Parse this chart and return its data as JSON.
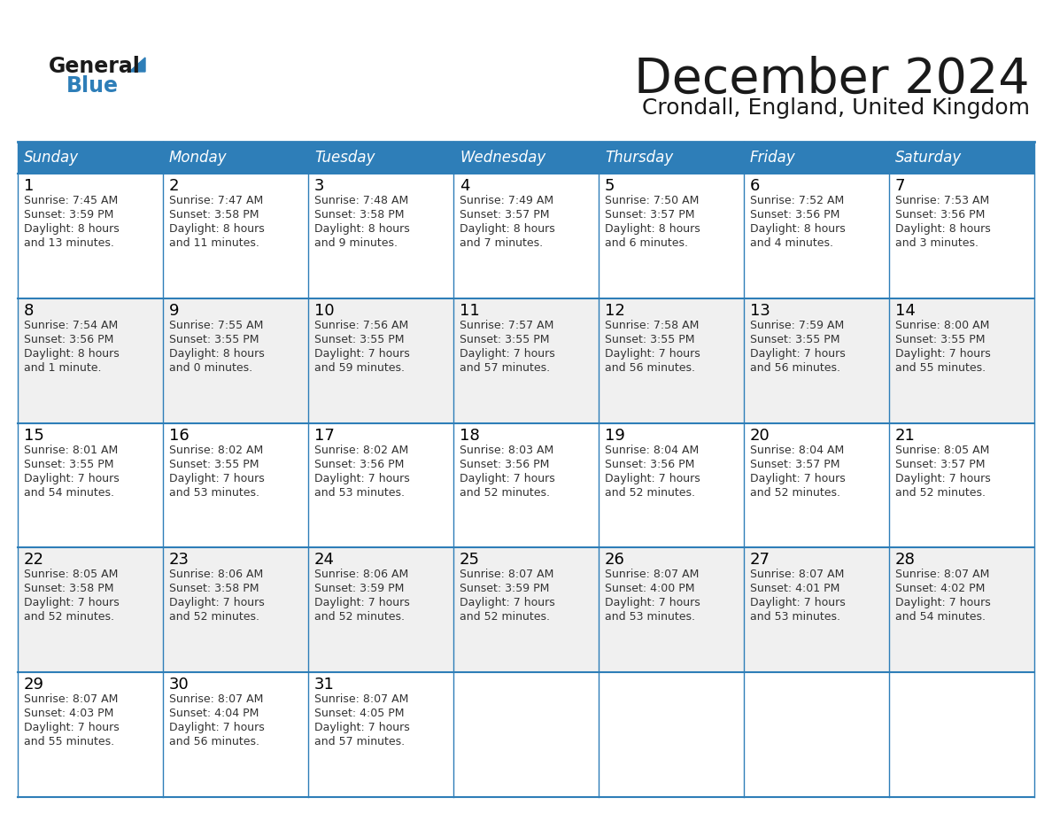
{
  "title": "December 2024",
  "subtitle": "Crondall, England, United Kingdom",
  "days_of_week": [
    "Sunday",
    "Monday",
    "Tuesday",
    "Wednesday",
    "Thursday",
    "Friday",
    "Saturday"
  ],
  "header_bg": "#2E7EB8",
  "header_text": "#FFFFFF",
  "row_bg_odd": "#FFFFFF",
  "row_bg_even": "#F0F0F0",
  "border_color": "#2E7EB8",
  "day_number_color": "#000000",
  "cell_text_color": "#333333",
  "background_color": "#FFFFFF",
  "title_color": "#1A1A1A",
  "subtitle_color": "#1A1A1A",
  "logo_text_color": "#1A1A1A",
  "logo_blue_color": "#2E7EB8",
  "calendar_data": [
    [
      {
        "day": 1,
        "sunrise": "7:45 AM",
        "sunset": "3:59 PM",
        "daylight_hours": 8,
        "daylight_minutes": 13,
        "minute_word": "minutes"
      },
      {
        "day": 2,
        "sunrise": "7:47 AM",
        "sunset": "3:58 PM",
        "daylight_hours": 8,
        "daylight_minutes": 11,
        "minute_word": "minutes"
      },
      {
        "day": 3,
        "sunrise": "7:48 AM",
        "sunset": "3:58 PM",
        "daylight_hours": 8,
        "daylight_minutes": 9,
        "minute_word": "minutes"
      },
      {
        "day": 4,
        "sunrise": "7:49 AM",
        "sunset": "3:57 PM",
        "daylight_hours": 8,
        "daylight_minutes": 7,
        "minute_word": "minutes"
      },
      {
        "day": 5,
        "sunrise": "7:50 AM",
        "sunset": "3:57 PM",
        "daylight_hours": 8,
        "daylight_minutes": 6,
        "minute_word": "minutes"
      },
      {
        "day": 6,
        "sunrise": "7:52 AM",
        "sunset": "3:56 PM",
        "daylight_hours": 8,
        "daylight_minutes": 4,
        "minute_word": "minutes"
      },
      {
        "day": 7,
        "sunrise": "7:53 AM",
        "sunset": "3:56 PM",
        "daylight_hours": 8,
        "daylight_minutes": 3,
        "minute_word": "minutes"
      }
    ],
    [
      {
        "day": 8,
        "sunrise": "7:54 AM",
        "sunset": "3:56 PM",
        "daylight_hours": 8,
        "daylight_minutes": 1,
        "minute_word": "minute"
      },
      {
        "day": 9,
        "sunrise": "7:55 AM",
        "sunset": "3:55 PM",
        "daylight_hours": 8,
        "daylight_minutes": 0,
        "minute_word": "minutes"
      },
      {
        "day": 10,
        "sunrise": "7:56 AM",
        "sunset": "3:55 PM",
        "daylight_hours": 7,
        "daylight_minutes": 59,
        "minute_word": "minutes"
      },
      {
        "day": 11,
        "sunrise": "7:57 AM",
        "sunset": "3:55 PM",
        "daylight_hours": 7,
        "daylight_minutes": 57,
        "minute_word": "minutes"
      },
      {
        "day": 12,
        "sunrise": "7:58 AM",
        "sunset": "3:55 PM",
        "daylight_hours": 7,
        "daylight_minutes": 56,
        "minute_word": "minutes"
      },
      {
        "day": 13,
        "sunrise": "7:59 AM",
        "sunset": "3:55 PM",
        "daylight_hours": 7,
        "daylight_minutes": 56,
        "minute_word": "minutes"
      },
      {
        "day": 14,
        "sunrise": "8:00 AM",
        "sunset": "3:55 PM",
        "daylight_hours": 7,
        "daylight_minutes": 55,
        "minute_word": "minutes"
      }
    ],
    [
      {
        "day": 15,
        "sunrise": "8:01 AM",
        "sunset": "3:55 PM",
        "daylight_hours": 7,
        "daylight_minutes": 54,
        "minute_word": "minutes"
      },
      {
        "day": 16,
        "sunrise": "8:02 AM",
        "sunset": "3:55 PM",
        "daylight_hours": 7,
        "daylight_minutes": 53,
        "minute_word": "minutes"
      },
      {
        "day": 17,
        "sunrise": "8:02 AM",
        "sunset": "3:56 PM",
        "daylight_hours": 7,
        "daylight_minutes": 53,
        "minute_word": "minutes"
      },
      {
        "day": 18,
        "sunrise": "8:03 AM",
        "sunset": "3:56 PM",
        "daylight_hours": 7,
        "daylight_minutes": 52,
        "minute_word": "minutes"
      },
      {
        "day": 19,
        "sunrise": "8:04 AM",
        "sunset": "3:56 PM",
        "daylight_hours": 7,
        "daylight_minutes": 52,
        "minute_word": "minutes"
      },
      {
        "day": 20,
        "sunrise": "8:04 AM",
        "sunset": "3:57 PM",
        "daylight_hours": 7,
        "daylight_minutes": 52,
        "minute_word": "minutes"
      },
      {
        "day": 21,
        "sunrise": "8:05 AM",
        "sunset": "3:57 PM",
        "daylight_hours": 7,
        "daylight_minutes": 52,
        "minute_word": "minutes"
      }
    ],
    [
      {
        "day": 22,
        "sunrise": "8:05 AM",
        "sunset": "3:58 PM",
        "daylight_hours": 7,
        "daylight_minutes": 52,
        "minute_word": "minutes"
      },
      {
        "day": 23,
        "sunrise": "8:06 AM",
        "sunset": "3:58 PM",
        "daylight_hours": 7,
        "daylight_minutes": 52,
        "minute_word": "minutes"
      },
      {
        "day": 24,
        "sunrise": "8:06 AM",
        "sunset": "3:59 PM",
        "daylight_hours": 7,
        "daylight_minutes": 52,
        "minute_word": "minutes"
      },
      {
        "day": 25,
        "sunrise": "8:07 AM",
        "sunset": "3:59 PM",
        "daylight_hours": 7,
        "daylight_minutes": 52,
        "minute_word": "minutes"
      },
      {
        "day": 26,
        "sunrise": "8:07 AM",
        "sunset": "4:00 PM",
        "daylight_hours": 7,
        "daylight_minutes": 53,
        "minute_word": "minutes"
      },
      {
        "day": 27,
        "sunrise": "8:07 AM",
        "sunset": "4:01 PM",
        "daylight_hours": 7,
        "daylight_minutes": 53,
        "minute_word": "minutes"
      },
      {
        "day": 28,
        "sunrise": "8:07 AM",
        "sunset": "4:02 PM",
        "daylight_hours": 7,
        "daylight_minutes": 54,
        "minute_word": "minutes"
      }
    ],
    [
      {
        "day": 29,
        "sunrise": "8:07 AM",
        "sunset": "4:03 PM",
        "daylight_hours": 7,
        "daylight_minutes": 55,
        "minute_word": "minutes"
      },
      {
        "day": 30,
        "sunrise": "8:07 AM",
        "sunset": "4:04 PM",
        "daylight_hours": 7,
        "daylight_minutes": 56,
        "minute_word": "minutes"
      },
      {
        "day": 31,
        "sunrise": "8:07 AM",
        "sunset": "4:05 PM",
        "daylight_hours": 7,
        "daylight_minutes": 57,
        "minute_word": "minutes"
      },
      null,
      null,
      null,
      null
    ]
  ]
}
